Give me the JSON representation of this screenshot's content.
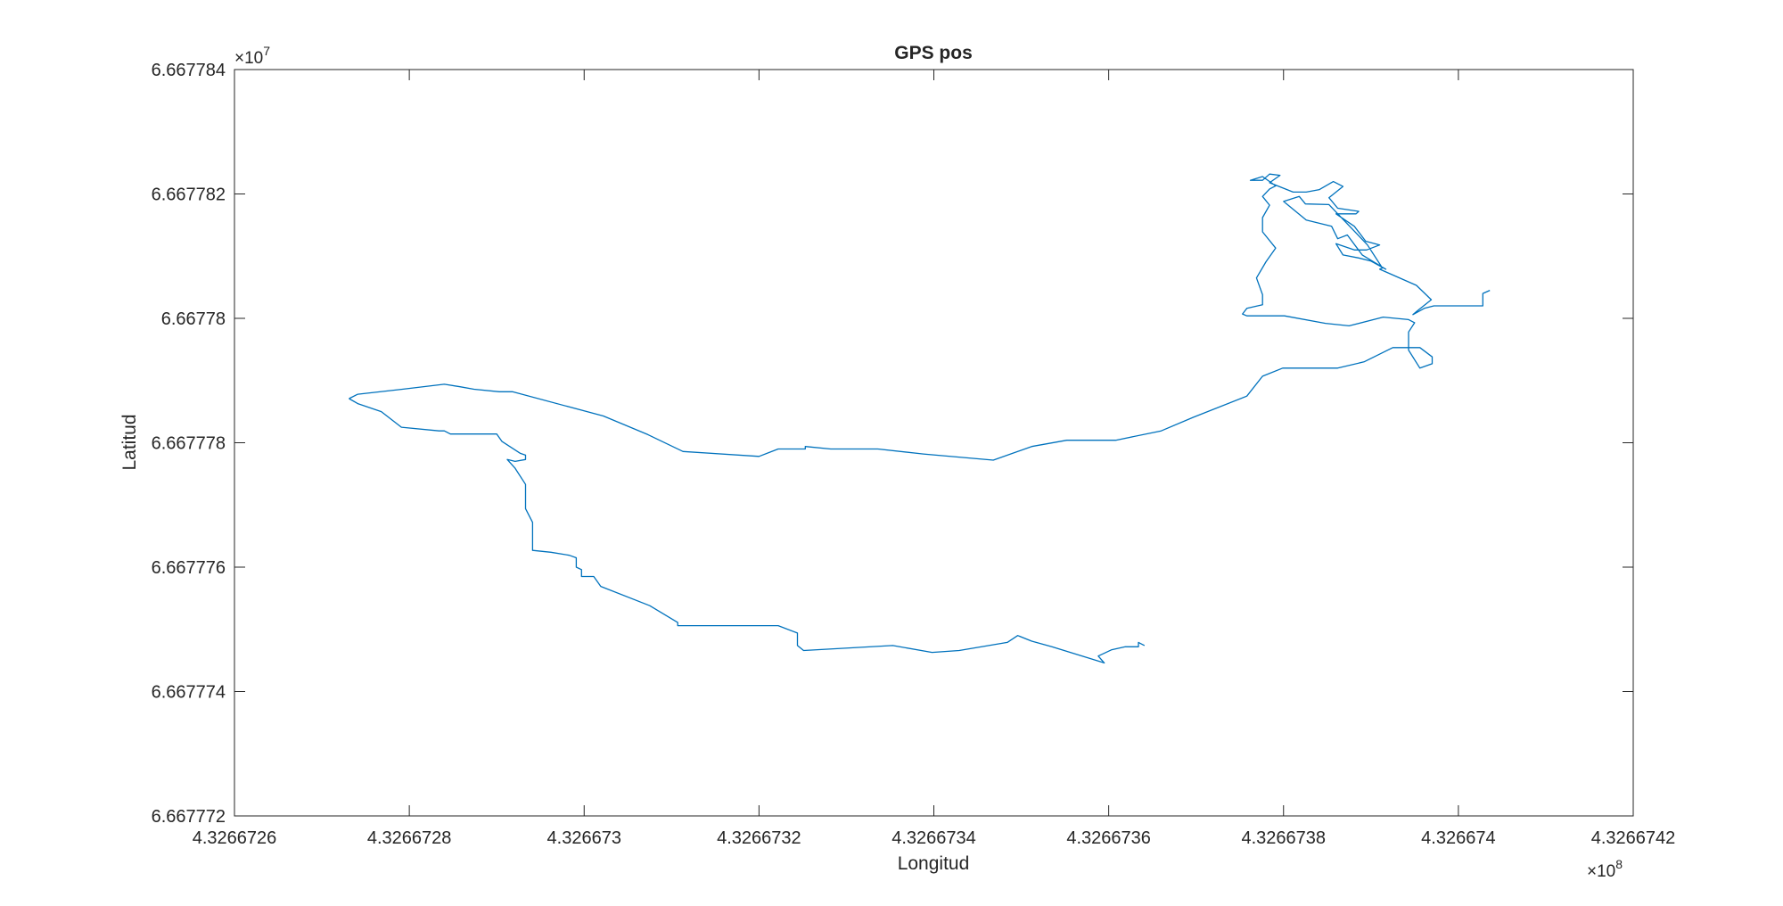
{
  "chart_data": {
    "type": "line",
    "title": "GPS pos",
    "xlabel": "Longitud",
    "ylabel": "Latitud",
    "x_exponent_label": "×10",
    "x_exponent_power": "8",
    "y_exponent_label": "×10",
    "y_exponent_power": "7",
    "xlim": [
      432667260,
      432667420
    ],
    "ylim": [
      66677720,
      66677840
    ],
    "x_ticks": [
      {
        "value": 432667260,
        "label": "4.3266726"
      },
      {
        "value": 432667280,
        "label": "4.3266728"
      },
      {
        "value": 432667300,
        "label": "4.326673"
      },
      {
        "value": 432667320,
        "label": "4.3266732"
      },
      {
        "value": 432667340,
        "label": "4.3266734"
      },
      {
        "value": 432667360,
        "label": "4.3266736"
      },
      {
        "value": 432667380,
        "label": "4.3266738"
      },
      {
        "value": 432667400,
        "label": "4.326674"
      },
      {
        "value": 432667420,
        "label": "4.3266742"
      }
    ],
    "y_ticks": [
      {
        "value": 66677720,
        "label": "6.667772"
      },
      {
        "value": 66677740,
        "label": "6.667774"
      },
      {
        "value": 66677760,
        "label": "6.667776"
      },
      {
        "value": 66677780,
        "label": "6.667778"
      },
      {
        "value": 66677800,
        "label": "6.66778"
      },
      {
        "value": 66677820,
        "label": "6.667782"
      },
      {
        "value": 66677840,
        "label": "6.667784"
      }
    ],
    "grid": false,
    "series": [
      {
        "color": "#0072BD",
        "points": [
          [
            432667273.1,
            66677787.1
          ],
          [
            432667274.1,
            66677787.8
          ],
          [
            432667279.2,
            66677788.6
          ],
          [
            432667284.0,
            66677789.4
          ],
          [
            432667285.8,
            66677789.0
          ],
          [
            432667287.4,
            66677788.6
          ],
          [
            432667290.3,
            66677788.2
          ],
          [
            432667291.8,
            66677788.2
          ],
          [
            432667302.2,
            66677784.3
          ],
          [
            432667307.3,
            66677781.3
          ],
          [
            432667311.3,
            66677778.6
          ],
          [
            432667320.0,
            66677777.8
          ],
          [
            432667322.2,
            66677779.0
          ],
          [
            432667325.3,
            66677779.0
          ],
          [
            432667325.3,
            66677779.4
          ],
          [
            432667328.2,
            66677779.0
          ],
          [
            432667333.6,
            66677779.0
          ],
          [
            432667338.8,
            66677778.2
          ],
          [
            432667346.8,
            66677777.2
          ],
          [
            432667351.2,
            66677779.4
          ],
          [
            432667355.2,
            66677780.4
          ],
          [
            432667360.8,
            66677780.4
          ],
          [
            432667366.0,
            66677781.9
          ],
          [
            432667369.7,
            66677784.1
          ],
          [
            432667375.8,
            66677787.5
          ],
          [
            432667377.6,
            66677790.7
          ],
          [
            432667379.9,
            66677792.0
          ],
          [
            432667386.2,
            66677792.0
          ],
          [
            432667389.2,
            66677793.0
          ],
          [
            432667392.5,
            66677795.3
          ],
          [
            432667395.6,
            66677795.3
          ],
          [
            432667397.0,
            66677793.8
          ],
          [
            432667397.0,
            66677792.7
          ],
          [
            432667395.6,
            66677792.0
          ],
          [
            432667394.3,
            66677794.9
          ],
          [
            432667394.3,
            66677797.8
          ],
          [
            432667395.0,
            66677799.3
          ],
          [
            432667394.3,
            66677799.8
          ],
          [
            432667391.4,
            66677800.2
          ],
          [
            432667387.5,
            66677798.8
          ],
          [
            432667384.8,
            66677799.2
          ],
          [
            432667380.1,
            66677800.4
          ],
          [
            432667375.8,
            66677800.4
          ],
          [
            432667375.3,
            66677800.7
          ],
          [
            432667375.8,
            66677801.6
          ],
          [
            432667377.6,
            66677802.2
          ],
          [
            432667377.6,
            66677803.8
          ],
          [
            432667376.9,
            66677806.5
          ],
          [
            432667378.0,
            66677809.1
          ],
          [
            432667379.1,
            66677811.3
          ],
          [
            432667377.6,
            66677813.9
          ],
          [
            432667377.6,
            66677816.2
          ],
          [
            432667378.4,
            66677818.2
          ],
          [
            432667377.6,
            66677819.6
          ],
          [
            432667378.4,
            66677820.8
          ],
          [
            432667379.1,
            66677821.3
          ],
          [
            432667377.6,
            66677822.8
          ],
          [
            432667376.2,
            66677822.2
          ],
          [
            432667377.6,
            66677822.2
          ],
          [
            432667378.4,
            66677823.2
          ],
          [
            432667379.6,
            66677823.0
          ],
          [
            432667378.4,
            66677821.8
          ],
          [
            432667381.1,
            66677820.3
          ],
          [
            432667382.6,
            66677820.3
          ],
          [
            432667384.1,
            66677820.7
          ],
          [
            432667385.7,
            66677822.0
          ],
          [
            432667386.8,
            66677821.2
          ],
          [
            432667385.2,
            66677819.4
          ],
          [
            432667386.2,
            66677817.7
          ],
          [
            432667388.6,
            66677817.2
          ],
          [
            432667388.3,
            66677816.8
          ],
          [
            432667386.0,
            66677816.8
          ],
          [
            432667388.1,
            66677814.8
          ],
          [
            432667389.4,
            66677812.4
          ],
          [
            432667391.0,
            66677811.8
          ],
          [
            432667389.5,
            66677811.0
          ],
          [
            432667388.1,
            66677811.0
          ],
          [
            432667386.0,
            66677812.0
          ],
          [
            432667386.8,
            66677810.2
          ],
          [
            432667388.6,
            66677809.7
          ],
          [
            432667390.0,
            66677809.2
          ],
          [
            432667391.7,
            66677807.9
          ],
          [
            432667389.0,
            66677810.2
          ],
          [
            432667387.3,
            66677813.4
          ],
          [
            432667386.2,
            66677812.8
          ],
          [
            432667385.5,
            66677814.8
          ],
          [
            432667382.6,
            66677815.8
          ],
          [
            432667380.0,
            66677818.8
          ],
          [
            432667381.8,
            66677819.6
          ],
          [
            432667382.5,
            66677818.4
          ],
          [
            432667385.2,
            66677818.3
          ],
          [
            432667389.6,
            66677811.8
          ],
          [
            432667391.3,
            66677808.1
          ],
          [
            432667391.0,
            66677807.9
          ],
          [
            432667395.2,
            66677805.3
          ],
          [
            432667396.9,
            66677803.0
          ],
          [
            432667395.3,
            66677801.2
          ],
          [
            432667394.8,
            66677800.6
          ],
          [
            432667396.1,
            66677801.6
          ],
          [
            432667397.2,
            66677802.0
          ],
          [
            432667400.6,
            66677802.0
          ],
          [
            432667402.8,
            66677802.0
          ],
          [
            432667402.8,
            66677804.0
          ],
          [
            432667403.6,
            66677804.5
          ]
        ]
      },
      {
        "color": "#0072BD",
        "points": [
          [
            432667273.1,
            66677787.1
          ],
          [
            432667274.1,
            66677786.3
          ],
          [
            432667276.8,
            66677785.0
          ],
          [
            432667279.1,
            66677782.5
          ],
          [
            432667283.4,
            66677781.9
          ],
          [
            432667284.0,
            66677781.9
          ],
          [
            432667284.7,
            66677781.4
          ],
          [
            432667290.0,
            66677781.4
          ],
          [
            432667290.6,
            66677780.2
          ],
          [
            432667292.7,
            66677778.3
          ],
          [
            432667293.3,
            66677778.0
          ],
          [
            432667293.3,
            66677777.3
          ],
          [
            432667292.1,
            66677777.0
          ],
          [
            432667291.2,
            66677777.3
          ],
          [
            432667292.1,
            66677775.9
          ],
          [
            432667293.3,
            66677773.3
          ],
          [
            432667293.3,
            66677769.4
          ],
          [
            432667294.1,
            66677767.2
          ],
          [
            432667294.1,
            66677762.7
          ],
          [
            432667296.2,
            66677762.4
          ],
          [
            432667298.3,
            66677761.9
          ],
          [
            432667299.1,
            66677761.5
          ],
          [
            432667299.1,
            66677760.0
          ],
          [
            432667299.7,
            66677759.6
          ],
          [
            432667299.7,
            66677758.5
          ],
          [
            432667301.1,
            66677758.5
          ],
          [
            432667301.9,
            66677756.9
          ],
          [
            432667307.5,
            66677753.8
          ],
          [
            432667310.7,
            66677751.1
          ],
          [
            432667310.7,
            66677750.6
          ],
          [
            432667322.2,
            66677750.6
          ],
          [
            432667324.4,
            66677749.4
          ],
          [
            432667324.4,
            66677747.4
          ],
          [
            432667325.1,
            66677746.6
          ],
          [
            432667335.3,
            66677747.4
          ],
          [
            432667339.8,
            66677746.3
          ],
          [
            432667342.9,
            66677746.6
          ],
          [
            432667348.4,
            66677747.9
          ],
          [
            432667349.6,
            66677749.0
          ],
          [
            432667351.2,
            66677748.1
          ],
          [
            432667353.5,
            66677747.2
          ],
          [
            432667359.5,
            66677744.6
          ],
          [
            432667358.8,
            66677745.7
          ],
          [
            432667360.3,
            66677746.7
          ],
          [
            432667361.9,
            66677747.2
          ],
          [
            432667363.4,
            66677747.2
          ],
          [
            432667363.4,
            66677747.9
          ],
          [
            432667364.1,
            66677747.4
          ]
        ]
      }
    ]
  }
}
